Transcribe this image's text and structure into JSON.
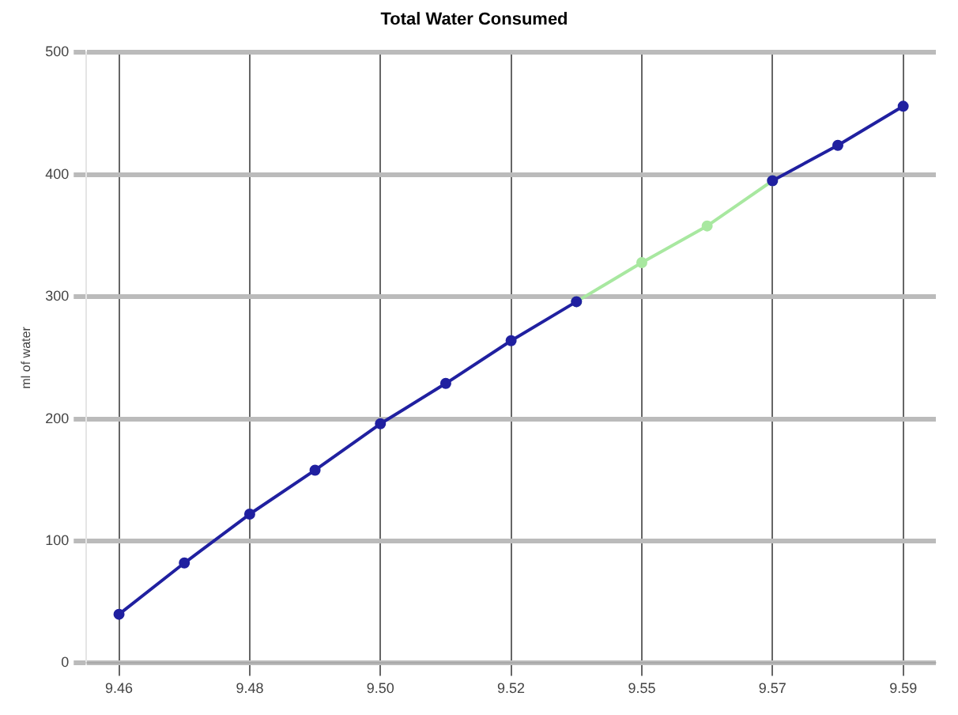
{
  "chart_data": {
    "type": "line",
    "title": "Total Water Consumed",
    "ylabel": "ml of water",
    "categories": [
      "9.46",
      null,
      "9.48",
      null,
      "9.50",
      null,
      "9.52",
      null,
      "9.55",
      null,
      "9.57",
      null,
      "9.59"
    ],
    "series": [
      {
        "color": "#2020a0",
        "values": [
          40,
          82,
          122,
          158,
          196,
          229,
          264,
          296,
          null,
          null,
          395,
          424,
          456
        ]
      },
      {
        "color": "#a8e8a0",
        "values": [
          null,
          null,
          null,
          null,
          null,
          null,
          null,
          296,
          328,
          358,
          395,
          null,
          null
        ]
      }
    ],
    "ylim": [
      0,
      500
    ],
    "yticks": [
      0,
      100,
      200,
      300,
      400,
      500
    ],
    "grid": true,
    "legend": false,
    "marker": "circle",
    "line_style": "solid"
  }
}
